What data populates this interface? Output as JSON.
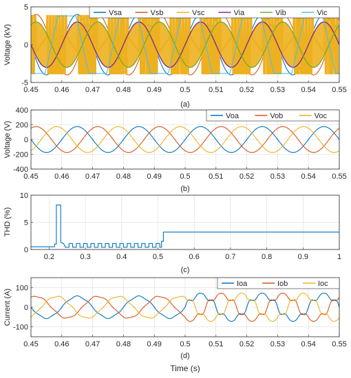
{
  "colors": {
    "blue": "#0072BD",
    "red": "#D95319",
    "yellow": "#EDB120",
    "purple": "#7E2F8E",
    "green": "#77AC30",
    "cyan": "#4DBEEE",
    "axis": "#262626",
    "grid": "#d9d9d9"
  },
  "chart_data": [
    {
      "id": "a",
      "type": "line",
      "caption": "(a)",
      "xlabel": "",
      "ylabel": "Voltage (kV)",
      "xlim": [
        0.45,
        0.55
      ],
      "ylim": [
        -5,
        5
      ],
      "xticks": [
        0.45,
        0.46,
        0.47,
        0.48,
        0.49,
        0.5,
        0.51,
        0.52,
        0.53,
        0.54,
        0.55
      ],
      "xtick_labels": [
        "0.45",
        "0.46",
        "0.47",
        "0.48",
        "0.49",
        "0.5",
        "0.51",
        "0.52",
        "0.53",
        "0.54",
        "0.55"
      ],
      "yticks": [
        -5,
        0,
        5
      ],
      "ytick_labels": [
        "-5",
        "0",
        "5"
      ],
      "grid": true,
      "legend": {
        "placement": "top-right",
        "columns": 6
      },
      "frequency_hz": 50,
      "series": [
        {
          "name": "Vsa",
          "color": "#0072BD",
          "kind": "sine",
          "amplitude": 4,
          "phase_deg": 0
        },
        {
          "name": "Vsb",
          "color": "#D95319",
          "kind": "sine",
          "amplitude": 4,
          "phase_deg": -120
        },
        {
          "name": "Vsc",
          "color": "#EDB120",
          "kind": "pwm",
          "amplitude": 3.8,
          "phase_deg": 120
        },
        {
          "name": "Via",
          "color": "#7E2F8E",
          "kind": "envelope",
          "amplitude": 3,
          "phase_deg": 0
        },
        {
          "name": "Vib",
          "color": "#77AC30",
          "kind": "envelope",
          "amplitude": 3,
          "phase_deg": -120
        },
        {
          "name": "Vic",
          "color": "#4DBEEE",
          "kind": "trapezoid",
          "amplitude": 3.8,
          "phase_deg": 60
        }
      ]
    },
    {
      "id": "b",
      "type": "line",
      "caption": "(b)",
      "xlabel": "",
      "ylabel": "Voltage (V)",
      "xlim": [
        0.45,
        0.55
      ],
      "ylim": [
        -400,
        400
      ],
      "xticks": [
        0.45,
        0.46,
        0.47,
        0.48,
        0.49,
        0.5,
        0.51,
        0.52,
        0.53,
        0.54,
        0.55
      ],
      "xtick_labels": [
        "0.45",
        "0.46",
        "0.47",
        "0.48",
        "0.49",
        "0.5",
        "0.51",
        "0.52",
        "0.53",
        "0.54",
        "0.55"
      ],
      "yticks": [
        -400,
        -200,
        0,
        200,
        400
      ],
      "ytick_labels": [
        "-400",
        "-200",
        "0",
        "200",
        "400"
      ],
      "grid": true,
      "legend": {
        "placement": "top-right",
        "columns": 3
      },
      "frequency_hz": 50,
      "series": [
        {
          "name": "Voa",
          "color": "#0072BD",
          "kind": "sine",
          "amplitude": 175,
          "phase_deg": 0
        },
        {
          "name": "Vob",
          "color": "#D95319",
          "kind": "sine",
          "amplitude": 175,
          "phase_deg": -120
        },
        {
          "name": "Voc",
          "color": "#EDB120",
          "kind": "sine",
          "amplitude": 175,
          "phase_deg": 120
        }
      ]
    },
    {
      "id": "c",
      "type": "line",
      "caption": "(c)",
      "xlabel": "",
      "ylabel": "THD (%)",
      "xlim": [
        0.15,
        1.0
      ],
      "ylim": [
        0,
        10
      ],
      "xticks": [
        0.2,
        0.3,
        0.4,
        0.5,
        0.6,
        0.7,
        0.8,
        0.9,
        1.0
      ],
      "xtick_labels": [
        "0.2",
        "0.3",
        "0.4",
        "0.5",
        "0.6",
        "0.7",
        "0.8",
        "0.9",
        "1"
      ],
      "yticks": [
        0,
        5,
        10
      ],
      "ytick_labels": [
        "0",
        "5",
        "10"
      ],
      "grid": true,
      "series": [
        {
          "name": "THD",
          "color": "#0072BD",
          "kind": "steps",
          "points": [
            [
              0.15,
              0.5
            ],
            [
              0.215,
              0.5
            ],
            [
              0.215,
              1.0
            ],
            [
              0.22,
              1.0
            ],
            [
              0.22,
              8.2
            ],
            [
              0.232,
              8.2
            ],
            [
              0.232,
              1.3
            ],
            [
              0.24,
              1.1
            ],
            [
              0.245,
              0.4
            ],
            [
              0.255,
              0.4
            ],
            [
              0.255,
              1.1
            ],
            [
              0.265,
              1.1
            ],
            [
              0.265,
              0.4
            ],
            [
              0.275,
              0.4
            ],
            [
              0.275,
              1.1
            ],
            [
              0.285,
              1.1
            ],
            [
              0.285,
              0.4
            ],
            [
              0.295,
              0.4
            ],
            [
              0.295,
              1.1
            ],
            [
              0.305,
              1.1
            ],
            [
              0.305,
              0.4
            ],
            [
              0.315,
              0.4
            ],
            [
              0.315,
              1.1
            ],
            [
              0.325,
              1.1
            ],
            [
              0.325,
              0.4
            ],
            [
              0.335,
              0.4
            ],
            [
              0.335,
              1.1
            ],
            [
              0.345,
              1.1
            ],
            [
              0.345,
              0.4
            ],
            [
              0.355,
              0.4
            ],
            [
              0.355,
              1.1
            ],
            [
              0.365,
              1.1
            ],
            [
              0.365,
              0.4
            ],
            [
              0.375,
              0.4
            ],
            [
              0.375,
              1.1
            ],
            [
              0.385,
              1.1
            ],
            [
              0.385,
              0.4
            ],
            [
              0.395,
              0.4
            ],
            [
              0.395,
              1.1
            ],
            [
              0.405,
              1.1
            ],
            [
              0.405,
              0.4
            ],
            [
              0.415,
              0.4
            ],
            [
              0.415,
              1.1
            ],
            [
              0.425,
              1.1
            ],
            [
              0.425,
              0.4
            ],
            [
              0.435,
              0.4
            ],
            [
              0.435,
              1.1
            ],
            [
              0.445,
              1.1
            ],
            [
              0.445,
              0.4
            ],
            [
              0.455,
              0.4
            ],
            [
              0.455,
              1.1
            ],
            [
              0.465,
              1.1
            ],
            [
              0.465,
              0.4
            ],
            [
              0.475,
              0.4
            ],
            [
              0.475,
              1.1
            ],
            [
              0.485,
              1.1
            ],
            [
              0.485,
              0.4
            ],
            [
              0.495,
              0.4
            ],
            [
              0.495,
              1.1
            ],
            [
              0.505,
              1.1
            ],
            [
              0.505,
              0.4
            ],
            [
              0.51,
              0.4
            ],
            [
              0.51,
              1.5
            ],
            [
              0.515,
              1.5
            ],
            [
              0.515,
              3.2
            ],
            [
              0.52,
              3.2
            ],
            [
              1.0,
              3.2
            ]
          ]
        }
      ]
    },
    {
      "id": "d",
      "type": "line",
      "caption": "(d)",
      "xlabel": "Time (s)",
      "ylabel": "Current (A)",
      "xlim": [
        0.45,
        0.55
      ],
      "ylim": [
        -150,
        150
      ],
      "xticks": [
        0.45,
        0.46,
        0.47,
        0.48,
        0.49,
        0.5,
        0.51,
        0.52,
        0.53,
        0.54,
        0.55
      ],
      "xtick_labels": [
        "0.45",
        "0.46",
        "0.47",
        "0.48",
        "0.49",
        "0.5",
        "0.51",
        "0.52",
        "0.53",
        "0.54",
        "0.55"
      ],
      "yticks": [
        -100,
        0,
        100
      ],
      "ytick_labels": [
        "-100",
        "0",
        "100"
      ],
      "grid": true,
      "legend": {
        "placement": "top-right",
        "columns": 3
      },
      "frequency_hz": 50,
      "step_time": 0.5,
      "amplitude_before": 55,
      "amplitude_after": 65,
      "series": [
        {
          "name": "Ioa",
          "color": "#0072BD",
          "kind": "distorted",
          "phase_deg": 0
        },
        {
          "name": "Iob",
          "color": "#D95319",
          "kind": "distorted",
          "phase_deg": -120
        },
        {
          "name": "Ioc",
          "color": "#EDB120",
          "kind": "distorted",
          "phase_deg": 120
        }
      ]
    }
  ]
}
